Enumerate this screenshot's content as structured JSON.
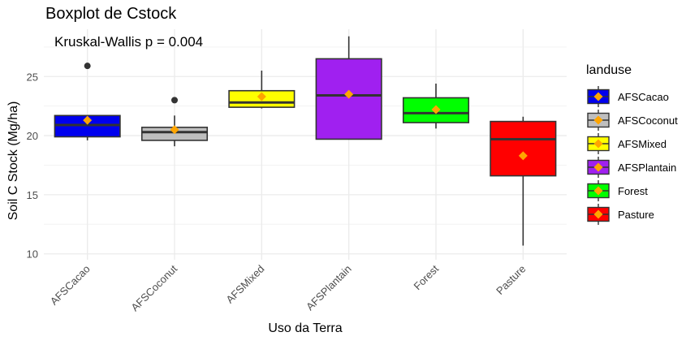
{
  "chart_data": {
    "type": "boxplot",
    "title": "Boxplot de Cstock",
    "annotation": "Kruskal-Wallis p = 0.004",
    "xlabel": "Uso da Terra",
    "ylabel": "Soil C Stock (Mg/ha)",
    "legend_title": "landuse",
    "legend_placement": "right",
    "yticks": [
      10,
      15,
      20,
      25
    ],
    "ylim": [
      9.5,
      29
    ],
    "grid": true,
    "categories": [
      "AFSCacao",
      "AFSCoconut",
      "AFSMixed",
      "AFSPlantain",
      "Forest",
      "Pasture"
    ],
    "colors": [
      "#0000EE",
      "#BEBEBE",
      "#FFFF00",
      "#A020F0",
      "#00FF00",
      "#FF0000"
    ],
    "mean_marker_color": "#FFA500",
    "boxes": [
      {
        "category": "AFSCacao",
        "whisker_low": 19.6,
        "q1": 19.9,
        "median": 20.9,
        "q3": 21.7,
        "whisker_high": 21.7,
        "mean": 21.3,
        "outliers": [
          25.9
        ]
      },
      {
        "category": "AFSCoconut",
        "whisker_low": 19.1,
        "q1": 19.6,
        "median": 20.3,
        "q3": 20.7,
        "whisker_high": 21.7,
        "mean": 20.5,
        "outliers": [
          23.0
        ]
      },
      {
        "category": "AFSMixed",
        "whisker_low": 22.3,
        "q1": 22.4,
        "median": 22.8,
        "q3": 23.8,
        "whisker_high": 25.5,
        "mean": 23.3,
        "outliers": []
      },
      {
        "category": "AFSPlantain",
        "whisker_low": 19.7,
        "q1": 19.7,
        "median": 23.4,
        "q3": 26.5,
        "whisker_high": 28.4,
        "mean": 23.5,
        "outliers": []
      },
      {
        "category": "Forest",
        "whisker_low": 20.6,
        "q1": 21.1,
        "median": 21.9,
        "q3": 23.2,
        "whisker_high": 24.4,
        "mean": 22.2,
        "outliers": []
      },
      {
        "category": "Pasture",
        "whisker_low": 10.7,
        "q1": 16.6,
        "median": 19.7,
        "q3": 21.2,
        "whisker_high": 21.6,
        "mean": 18.3,
        "outliers": []
      }
    ]
  }
}
